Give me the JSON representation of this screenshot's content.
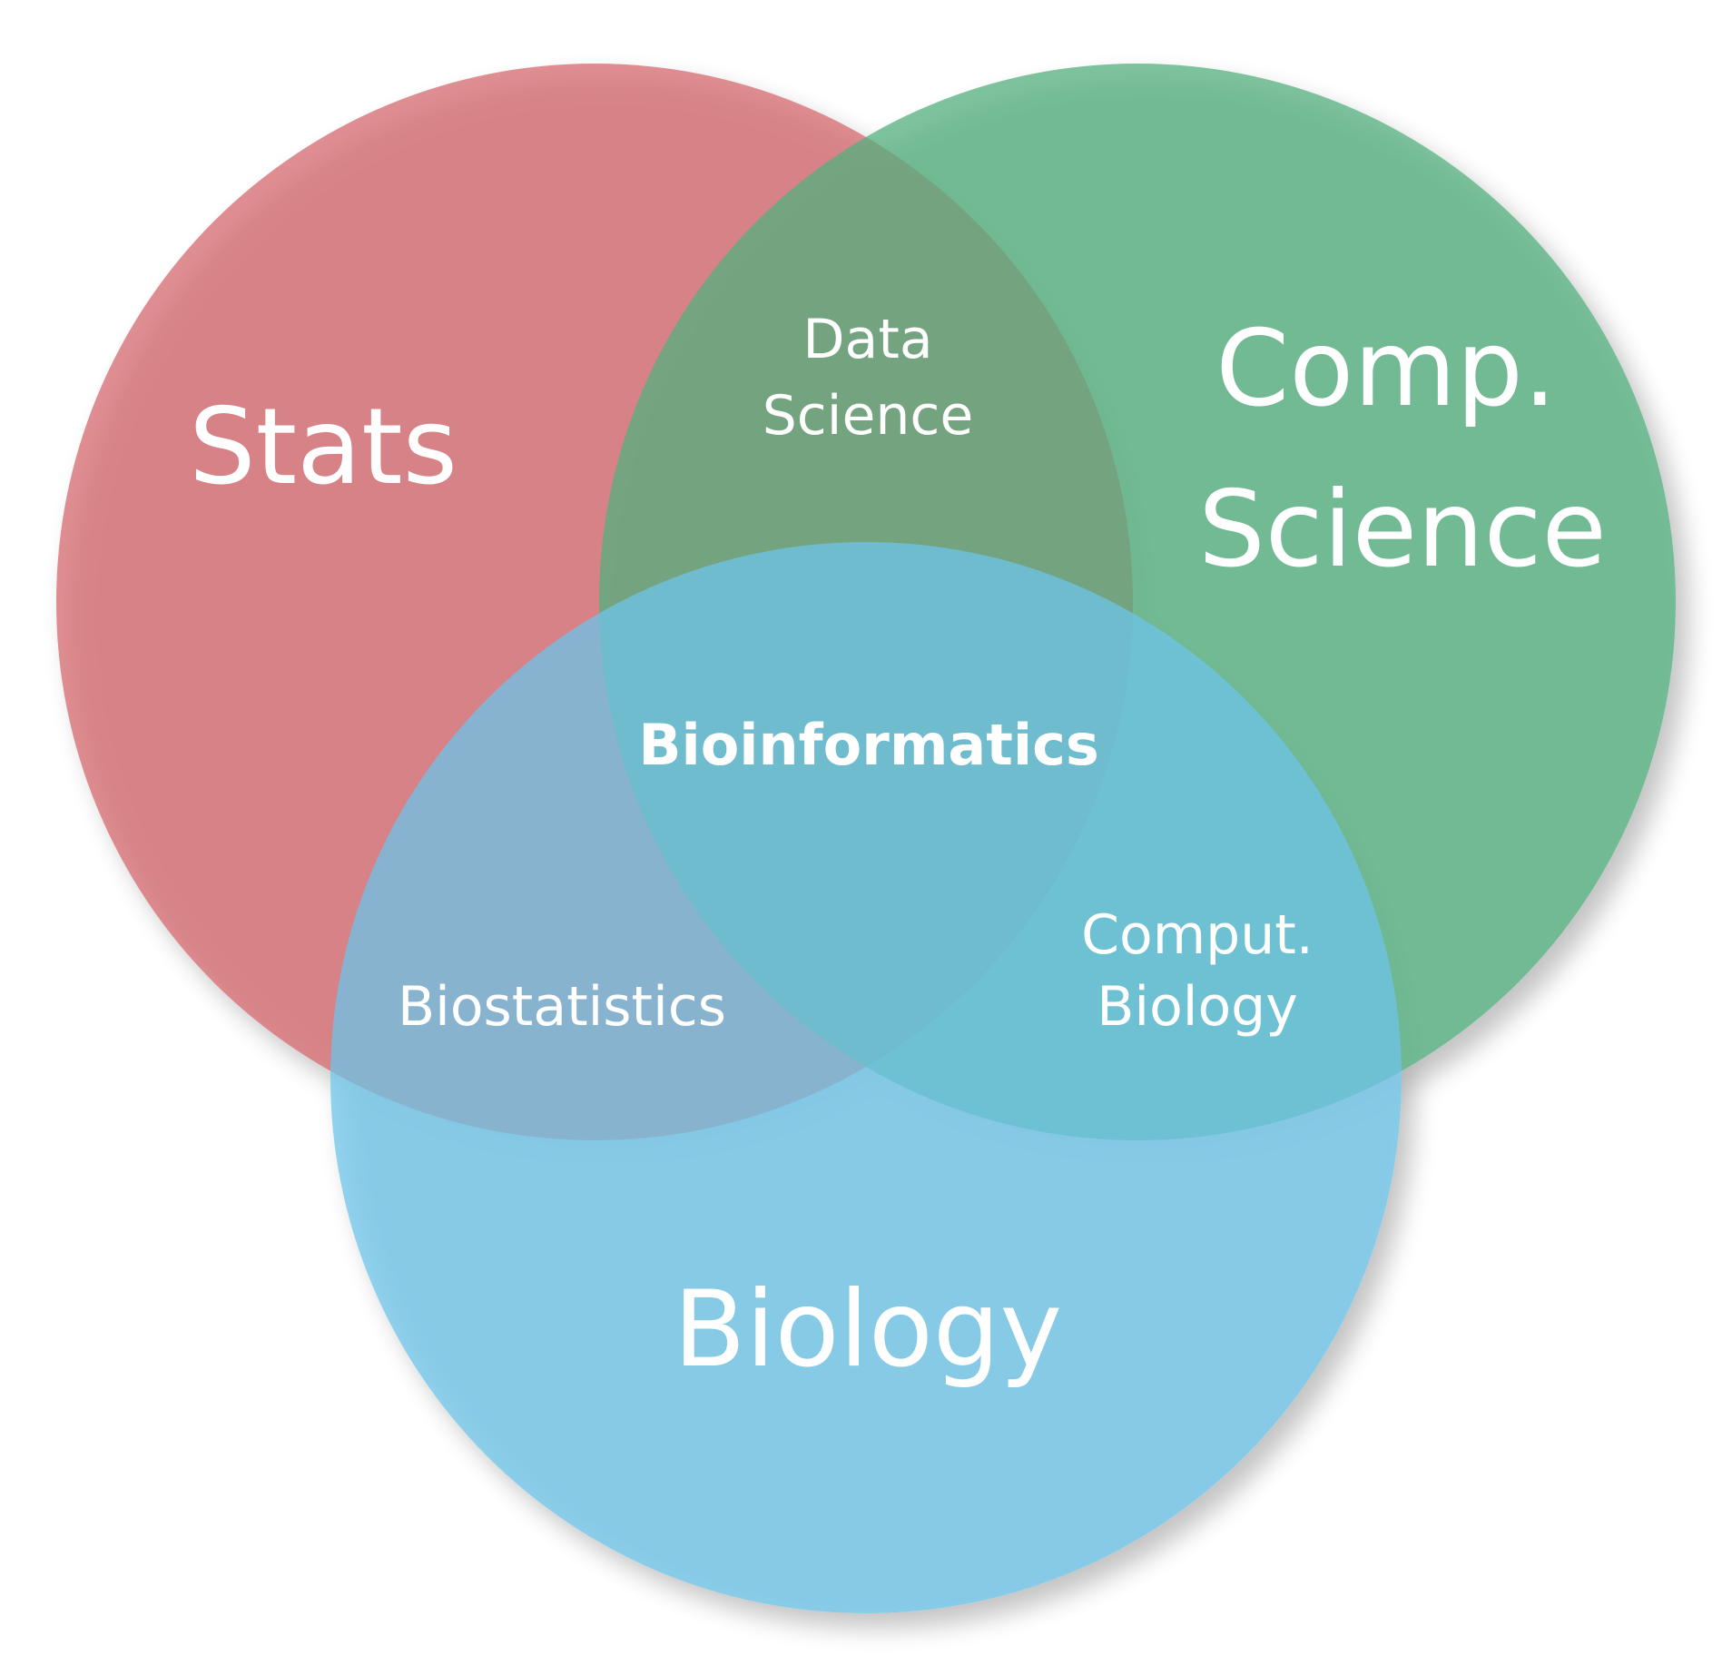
{
  "diagram": {
    "sets": [
      {
        "label": "Stats",
        "color": "#d4686d"
      },
      {
        "label_line1": "Comp.",
        "label_line2": "Science",
        "color": "#52b07e"
      },
      {
        "label": "Biology",
        "color": "#6dc3e8"
      }
    ],
    "intersections": {
      "stats_compsci": {
        "line1": "Data",
        "line2": "Science"
      },
      "stats_biology": {
        "label": "Biostatistics"
      },
      "compsci_biology": {
        "line1": "Comput.",
        "line2": "Biology"
      },
      "all": {
        "label": "Bioinformatics"
      }
    }
  }
}
